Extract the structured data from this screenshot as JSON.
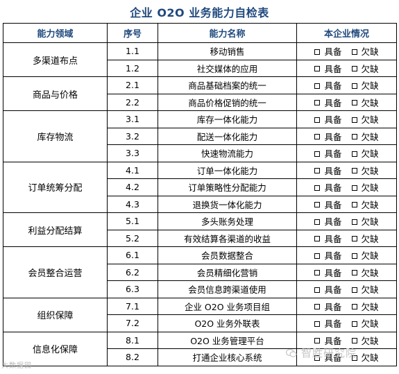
{
  "title": "企业 O2O 业务能力自检表",
  "headers": {
    "area": "能力领域",
    "no": "序号",
    "name": "能力名称",
    "status": "本企业情况"
  },
  "options": {
    "have": "具备",
    "lack": "欠缺"
  },
  "groups": [
    {
      "area": "多渠道布点",
      "items": [
        {
          "no": "1.1",
          "name": "移动销售"
        },
        {
          "no": "1.2",
          "name": "社交媒体的应用"
        }
      ]
    },
    {
      "area": "商品与价格",
      "items": [
        {
          "no": "2.1",
          "name": "商品基础档案的统一"
        },
        {
          "no": "2.2",
          "name": "商品价格促销的统一"
        }
      ]
    },
    {
      "area": "库存物流",
      "items": [
        {
          "no": "3.1",
          "name": "库存一体化能力"
        },
        {
          "no": "3.2",
          "name": "配送一体化能力"
        },
        {
          "no": "3.3",
          "name": "快速物流能力"
        }
      ]
    },
    {
      "area": "订单统筹分配",
      "items": [
        {
          "no": "4.1",
          "name": "订单一体化能力"
        },
        {
          "no": "4.2",
          "name": "订单策略性分配能力"
        },
        {
          "no": "4.3",
          "name": "退换货一体化能力"
        }
      ]
    },
    {
      "area": "利益分配结算",
      "items": [
        {
          "no": "5.1",
          "name": "多头账务处理"
        },
        {
          "no": "5.2",
          "name": "有效结算各渠道的收益"
        }
      ]
    },
    {
      "area": "会员整合运营",
      "items": [
        {
          "no": "6.1",
          "name": "会员数据整合"
        },
        {
          "no": "6.2",
          "name": "会员精细化营销"
        },
        {
          "no": "6.3",
          "name": "会员信息跨渠道使用"
        }
      ]
    },
    {
      "area": "组织保障",
      "items": [
        {
          "no": "7.1",
          "name": "企业 O2O 业务项目组"
        },
        {
          "no": "7.2",
          "name": "O2O 业务外联表"
        }
      ]
    },
    {
      "area": "信息化保障",
      "items": [
        {
          "no": "8.1",
          "name": "O2O 业务管理平台"
        },
        {
          "no": "8.2",
          "name": "打通企业核心系统"
        }
      ]
    }
  ],
  "watermarks": {
    "left": "大数据园",
    "right": "智胜研究院"
  }
}
